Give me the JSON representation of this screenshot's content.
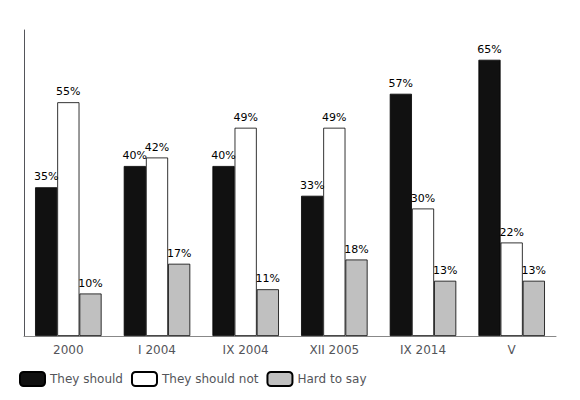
{
  "chart_data": {
    "type": "bar",
    "categories": [
      "2000",
      "I 2004",
      "IX 2004",
      "XII 2005",
      "IX 2014",
      "V"
    ],
    "series": [
      {
        "name": "They should",
        "color": "#111111",
        "values": [
          35,
          40,
          40,
          33,
          57,
          65
        ],
        "value_labels": [
          "35%",
          "40%",
          "40%",
          "33%",
          "57%",
          "65%"
        ]
      },
      {
        "name": "They should not",
        "color": "#ffffff",
        "values": [
          55,
          42,
          49,
          49,
          30,
          22
        ],
        "value_labels": [
          "55%",
          "42%",
          "49%",
          "49%",
          "30%",
          "22%"
        ]
      },
      {
        "name": "Hard to say",
        "color": "#c0c0c0",
        "values": [
          10,
          17,
          11,
          18,
          13,
          13
        ],
        "value_labels": [
          "10%",
          "17%",
          "11%",
          "18%",
          "13%",
          "13%"
        ]
      }
    ],
    "ylim": [
      0,
      72
    ],
    "grid": false,
    "legend": "lower left",
    "data_labels": true,
    "tick_labels": "x"
  }
}
